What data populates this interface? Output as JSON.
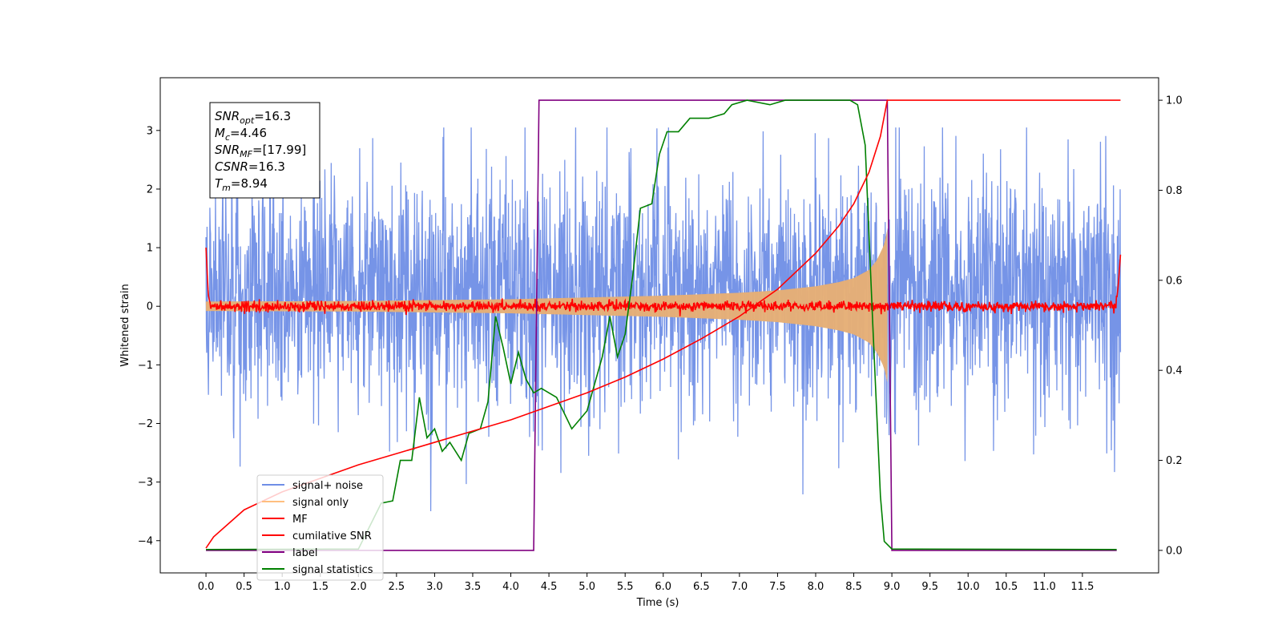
{
  "chart_data": {
    "type": "line",
    "xlabel": "Time (s)",
    "ylabel": "Whitened strain",
    "xlim": [
      -0.6,
      12.5
    ],
    "ylim": [
      -4.55,
      3.9
    ],
    "y2lim": [
      -0.05,
      1.05
    ],
    "x_ticks": [
      0.0,
      0.5,
      1.0,
      1.5,
      2.0,
      2.5,
      3.0,
      3.5,
      4.0,
      4.5,
      5.0,
      5.5,
      6.0,
      6.5,
      7.0,
      7.5,
      8.0,
      8.5,
      9.0,
      9.5,
      10.0,
      10.5,
      11.0,
      11.5
    ],
    "x_tick_labels": [
      "0.0",
      "0.5",
      "1.0",
      "1.5",
      "2.0",
      "2.5",
      "3.0",
      "3.5",
      "4.0",
      "4.5",
      "5.0",
      "5.5",
      "6.0",
      "6.5",
      "7.0",
      "7.5",
      "8.0",
      "8.5",
      "9.0",
      "9.5",
      "10.0",
      "10.5",
      "11.0",
      "11.5"
    ],
    "y_ticks": [
      -4,
      -3,
      -2,
      -1,
      0,
      1,
      2,
      3
    ],
    "y_tick_labels": [
      "−4",
      "−3",
      "−2",
      "−1",
      "0",
      "1",
      "2",
      "3"
    ],
    "y2_ticks": [
      0.0,
      0.2,
      0.4,
      0.6,
      0.8,
      1.0
    ],
    "y2_tick_labels": [
      "0.0",
      "0.2",
      "0.4",
      "0.6",
      "0.8",
      "1.0"
    ],
    "series": [
      {
        "name": "signal+ noise",
        "axis": "left",
        "color": "#6f8ee6",
        "x_range": [
          0.0,
          12.0
        ],
        "typical_range": [
          -1.8,
          2.3
        ],
        "peak_range": [
          -3.95,
          3.05
        ]
      },
      {
        "name": "signal only",
        "axis": "left",
        "color": "#ffbf7f",
        "envelope": {
          "x": [
            0.0,
            2.0,
            4.0,
            5.0,
            6.0,
            7.0,
            7.5,
            8.0,
            8.3,
            8.5,
            8.7,
            8.8,
            8.9,
            8.94
          ],
          "amp": [
            0.08,
            0.09,
            0.12,
            0.15,
            0.18,
            0.23,
            0.27,
            0.34,
            0.41,
            0.48,
            0.62,
            0.78,
            1.05,
            1.3
          ]
        }
      },
      {
        "name": "MF",
        "axis": "left",
        "color": "#ff0000",
        "points": [
          [
            0.0,
            1.0
          ],
          [
            0.03,
            0.2
          ],
          [
            0.06,
            0.0
          ],
          [
            11.94,
            0.0
          ],
          [
            11.97,
            0.35
          ],
          [
            12.0,
            0.88
          ]
        ],
        "noise_amplitude": 0.08
      },
      {
        "name": "cumilative SNR",
        "axis": "right",
        "color": "#ff0000",
        "points": [
          [
            0.0,
            0.005
          ],
          [
            0.1,
            0.03
          ],
          [
            0.5,
            0.09
          ],
          [
            1.0,
            0.13
          ],
          [
            1.5,
            0.16
          ],
          [
            2.0,
            0.19
          ],
          [
            2.5,
            0.215
          ],
          [
            3.0,
            0.24
          ],
          [
            3.5,
            0.265
          ],
          [
            4.0,
            0.29
          ],
          [
            4.5,
            0.32
          ],
          [
            5.0,
            0.35
          ],
          [
            5.5,
            0.385
          ],
          [
            6.0,
            0.425
          ],
          [
            6.5,
            0.47
          ],
          [
            7.0,
            0.52
          ],
          [
            7.5,
            0.58
          ],
          [
            8.0,
            0.66
          ],
          [
            8.3,
            0.72
          ],
          [
            8.5,
            0.77
          ],
          [
            8.7,
            0.84
          ],
          [
            8.85,
            0.92
          ],
          [
            8.94,
            1.0
          ],
          [
            12.0,
            1.0
          ]
        ]
      },
      {
        "name": "label",
        "axis": "right",
        "color": "#800080",
        "points": [
          [
            0.0,
            0.0
          ],
          [
            4.3,
            0.0
          ],
          [
            4.37,
            1.0
          ],
          [
            8.94,
            1.0
          ],
          [
            9.0,
            0.0
          ],
          [
            11.95,
            0.0
          ]
        ]
      },
      {
        "name": "signal statistics",
        "axis": "right",
        "color": "#008000",
        "points": [
          [
            0.0,
            0.002
          ],
          [
            2.0,
            0.003
          ],
          [
            2.3,
            0.105
          ],
          [
            2.45,
            0.11
          ],
          [
            2.55,
            0.2
          ],
          [
            2.7,
            0.2
          ],
          [
            2.8,
            0.34
          ],
          [
            2.9,
            0.25
          ],
          [
            3.0,
            0.27
          ],
          [
            3.1,
            0.22
          ],
          [
            3.2,
            0.24
          ],
          [
            3.35,
            0.2
          ],
          [
            3.45,
            0.26
          ],
          [
            3.6,
            0.27
          ],
          [
            3.7,
            0.33
          ],
          [
            3.8,
            0.52
          ],
          [
            3.9,
            0.45
          ],
          [
            4.0,
            0.37
          ],
          [
            4.1,
            0.44
          ],
          [
            4.2,
            0.38
          ],
          [
            4.3,
            0.35
          ],
          [
            4.4,
            0.36
          ],
          [
            4.6,
            0.34
          ],
          [
            4.8,
            0.27
          ],
          [
            5.0,
            0.31
          ],
          [
            5.1,
            0.37
          ],
          [
            5.2,
            0.43
          ],
          [
            5.3,
            0.52
          ],
          [
            5.4,
            0.43
          ],
          [
            5.5,
            0.48
          ],
          [
            5.6,
            0.61
          ],
          [
            5.7,
            0.76
          ],
          [
            5.85,
            0.77
          ],
          [
            5.95,
            0.88
          ],
          [
            6.05,
            0.93
          ],
          [
            6.2,
            0.93
          ],
          [
            6.35,
            0.96
          ],
          [
            6.6,
            0.96
          ],
          [
            6.8,
            0.97
          ],
          [
            6.9,
            0.99
          ],
          [
            7.1,
            1.0
          ],
          [
            7.4,
            0.99
          ],
          [
            7.6,
            1.0
          ],
          [
            8.0,
            1.0
          ],
          [
            8.2,
            1.0
          ],
          [
            8.45,
            1.0
          ],
          [
            8.55,
            0.99
          ],
          [
            8.65,
            0.9
          ],
          [
            8.75,
            0.5
          ],
          [
            8.85,
            0.12
          ],
          [
            8.9,
            0.02
          ],
          [
            9.0,
            0.003
          ],
          [
            11.95,
            0.002
          ]
        ]
      }
    ],
    "legend": {
      "position": "lower-left"
    },
    "grid": false,
    "annotation_lines": [
      {
        "label": "SNR",
        "sub": "opt",
        "value": "=16.3"
      },
      {
        "label": "M",
        "sub": "c",
        "value": "=4.46"
      },
      {
        "label": "SNR",
        "sub": "MF",
        "value": "=[17.99]"
      },
      {
        "label": "CSNR",
        "sub": "",
        "value": "=16.3"
      },
      {
        "label": "T",
        "sub": "m",
        "value": "=8.94"
      }
    ]
  }
}
